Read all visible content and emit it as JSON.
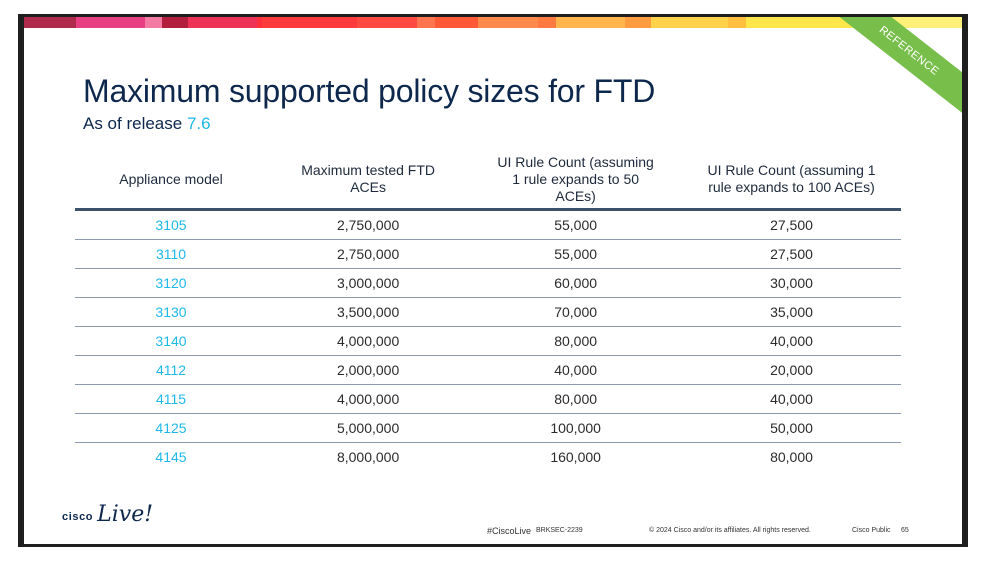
{
  "slide": {
    "title": "Maximum supported policy sizes for FTD",
    "subtitle_prefix": "As of release",
    "subtitle_version": "7.6",
    "ribbon": "REFERENCE",
    "colors": {
      "accent": "#1fb8e8",
      "title": "#0d274d",
      "ribbon": "#78be4a"
    },
    "colorbar": [
      "#b02a4e",
      "#e83e82",
      "#f27aa3",
      "#b31d3e",
      "#ee3156",
      "#ff2e3c",
      "#ff3a3d",
      "#ff4a42",
      "#ff7550",
      "#ff5a38",
      "#ff8a4c",
      "#ff7a40",
      "#ffb54c",
      "#ff9c40",
      "#ffd24a",
      "#ffc040",
      "#ffe64a",
      "#fff07a"
    ]
  },
  "table": {
    "headers": [
      "Appliance model",
      "Maximum tested FTD ACEs",
      "UI Rule Count (assuming 1 rule expands to 50 ACEs)",
      "UI Rule Count (assuming 1 rule expands to 100 ACEs)"
    ],
    "rows": [
      {
        "model": "3105",
        "aces": "2,750,000",
        "rules50": "55,000",
        "rules100": "27,500"
      },
      {
        "model": "3110",
        "aces": "2,750,000",
        "rules50": "55,000",
        "rules100": "27,500"
      },
      {
        "model": "3120",
        "aces": "3,000,000",
        "rules50": "60,000",
        "rules100": "30,000"
      },
      {
        "model": "3130",
        "aces": "3,500,000",
        "rules50": "70,000",
        "rules100": "35,000"
      },
      {
        "model": "3140",
        "aces": "4,000,000",
        "rules50": "80,000",
        "rules100": "40,000"
      },
      {
        "model": "4112",
        "aces": "2,000,000",
        "rules50": "40,000",
        "rules100": "20,000"
      },
      {
        "model": "4115",
        "aces": "4,000,000",
        "rules50": "80,000",
        "rules100": "40,000"
      },
      {
        "model": "4125",
        "aces": "5,000,000",
        "rules50": "100,000",
        "rules100": "50,000"
      },
      {
        "model": "4145",
        "aces": "8,000,000",
        "rules50": "160,000",
        "rules100": "80,000"
      }
    ]
  },
  "footer": {
    "logo_cisco": "cisco",
    "logo_live": "Live!",
    "hashtag": "#CiscoLive",
    "session_code": "BRKSEC-2239",
    "copyright": "© 2024  Cisco and/or its affiliates. All rights reserved.",
    "classification": "Cisco Public",
    "page_number": "65"
  }
}
